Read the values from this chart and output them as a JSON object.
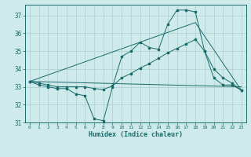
{
  "title": "",
  "xlabel": "Humidex (Indice chaleur)",
  "background_color": "#ceeaea",
  "line_color": "#1a6b6b",
  "grid_color": "#aed0d0",
  "xlim": [
    -0.5,
    23.5
  ],
  "ylim": [
    31.0,
    37.6
  ],
  "yticks": [
    31,
    32,
    33,
    34,
    35,
    36,
    37
  ],
  "xticks": [
    0,
    1,
    2,
    3,
    4,
    5,
    6,
    7,
    8,
    9,
    10,
    11,
    12,
    13,
    14,
    15,
    16,
    17,
    18,
    19,
    20,
    21,
    22,
    23
  ],
  "line1_x": [
    0,
    1,
    2,
    3,
    4,
    5,
    6,
    7,
    8,
    9,
    10,
    11,
    12,
    13,
    14,
    15,
    16,
    17,
    18,
    19,
    20,
    21,
    22,
    23
  ],
  "line1_y": [
    33.3,
    33.1,
    33.0,
    32.9,
    32.9,
    32.6,
    32.5,
    31.2,
    31.1,
    33.0,
    34.7,
    35.0,
    35.5,
    35.2,
    35.1,
    36.5,
    37.3,
    37.3,
    37.2,
    35.0,
    33.5,
    33.1,
    33.1,
    32.8
  ],
  "line2_x": [
    0,
    1,
    2,
    3,
    4,
    5,
    6,
    7,
    8,
    9,
    10,
    11,
    12,
    13,
    14,
    15,
    16,
    17,
    18,
    19,
    20,
    21,
    22,
    23
  ],
  "line2_y": [
    33.3,
    33.2,
    33.1,
    33.0,
    33.0,
    33.0,
    33.0,
    32.9,
    32.85,
    33.05,
    33.5,
    33.75,
    34.05,
    34.3,
    34.6,
    34.9,
    35.15,
    35.4,
    35.65,
    35.0,
    34.0,
    33.5,
    33.2,
    32.8
  ],
  "line3_x": [
    0,
    23
  ],
  "line3_y": [
    33.3,
    33.0
  ],
  "line4_x": [
    0,
    18,
    23
  ],
  "line4_y": [
    33.3,
    36.6,
    32.8
  ]
}
